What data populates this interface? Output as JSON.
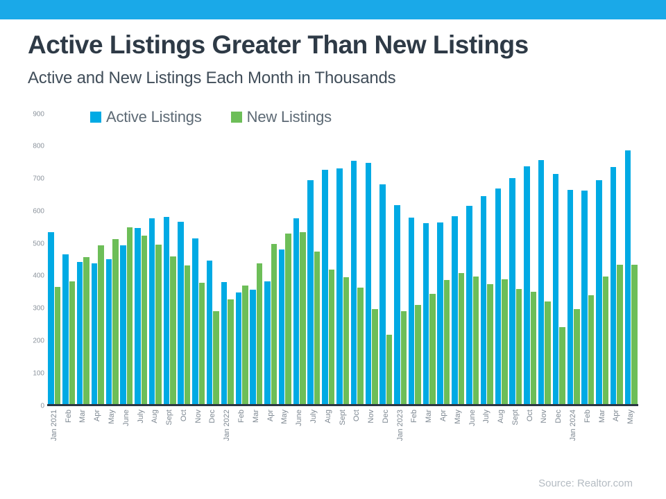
{
  "header": {
    "title": "Active Listings Greater Than New Listings",
    "subtitle": "Active and New Listings Each Month in Thousands"
  },
  "legend": [
    {
      "label": "Active Listings",
      "color": "#00aae4"
    },
    {
      "label": "New Listings",
      "color": "#6dbe58"
    }
  ],
  "source": "Source: Realtor.com",
  "colors": {
    "topbar": "#1aa9e8",
    "active_bar": "#00aae4",
    "new_bar": "#6dbe58",
    "axis_line": "#2b3642"
  },
  "chart_data": {
    "type": "bar",
    "title": "Active Listings Greater Than New Listings",
    "subtitle": "Active and New Listings Each Month in Thousands",
    "categories": [
      "Jan 2021",
      "Feb",
      "Mar",
      "Apr",
      "May",
      "June",
      "July",
      "Aug",
      "Sept",
      "Oct",
      "Nov",
      "Dec",
      "Jan 2022",
      "Feb",
      "Mar",
      "Apr",
      "May",
      "June",
      "July",
      "Aug",
      "Sept",
      "Oct",
      "Nov",
      "Dec",
      "Jan 2023",
      "Feb",
      "Mar",
      "Apr",
      "May",
      "June",
      "July",
      "Aug",
      "Sept",
      "Oct",
      "Nov",
      "Dec",
      "Jan 2024",
      "Feb",
      "Mar",
      "Apr",
      "May"
    ],
    "series": [
      {
        "name": "Active Listings",
        "color": "#00aae4",
        "values": [
          533,
          465,
          441,
          437,
          448,
          492,
          547,
          576,
          580,
          566,
          513,
          444,
          377,
          346,
          355,
          380,
          480,
          576,
          694,
          726,
          731,
          754,
          749,
          681,
          617,
          578,
          562,
          563,
          582,
          615,
          646,
          669,
          700,
          737,
          756,
          713,
          664,
          663,
          694,
          735,
          788
        ]
      },
      {
        "name": "New Listings",
        "color": "#6dbe58",
        "values": [
          362,
          380,
          455,
          492,
          511,
          549,
          522,
          494,
          458,
          430,
          375,
          287,
          324,
          367,
          436,
          496,
          528,
          533,
          472,
          417,
          394,
          360,
          295,
          214,
          287,
          306,
          341,
          384,
          407,
          396,
          371,
          386,
          357,
          348,
          317,
          237,
          295,
          338,
          396,
          431,
          431
        ]
      }
    ],
    "xlabel": "",
    "ylabel": "",
    "ylim": [
      0,
      900
    ],
    "yticks": [
      0,
      100,
      200,
      300,
      400,
      500,
      600,
      700,
      800,
      900
    ],
    "grid": false,
    "legend_position": "top-left-inside",
    "source": "Source: Realtor.com"
  }
}
